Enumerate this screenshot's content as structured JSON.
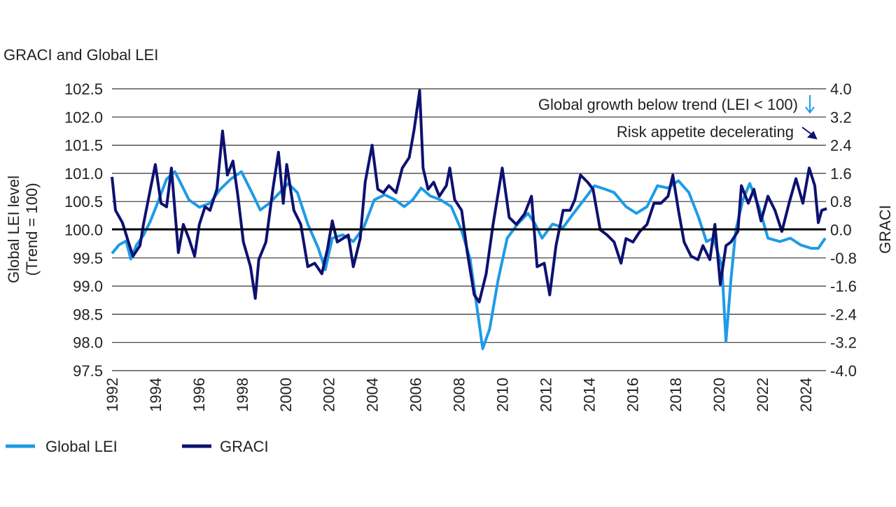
{
  "chart_data": {
    "type": "line",
    "title": "GRACI and Global LEI",
    "x_range": [
      1992,
      2025
    ],
    "x_ticks": [
      "1992",
      "1994",
      "1996",
      "1998",
      "2000",
      "2002",
      "2004",
      "2006",
      "2008",
      "2010",
      "2012",
      "2014",
      "2016",
      "2018",
      "2020",
      "2022",
      "2024"
    ],
    "left_axis": {
      "label_line1": "Global LEI level",
      "label_line2": "(Trend = 100)",
      "range": [
        97.5,
        102.5
      ],
      "ticks": [
        "102.5",
        "102.0",
        "101.5",
        "101.0",
        "100.5",
        "100.0",
        "99.5",
        "99.0",
        "98.5",
        "98.0",
        "97.5"
      ]
    },
    "right_axis": {
      "label": "GRACI",
      "range": [
        -4.0,
        4.0
      ],
      "ticks": [
        "4.0",
        "3.2",
        "2.4",
        "1.6",
        "0.8",
        "0.0",
        "-0.8",
        "-1.6",
        "-2.4",
        "-3.2",
        "-4.0"
      ]
    },
    "reference_line": {
      "left_value": 100.0
    },
    "grid": true,
    "annotations": [
      "Global growth below trend (LEI < 100)",
      "Risk appetite decelerating"
    ],
    "legend_position": "bottom-left",
    "series": [
      {
        "name": "Global LEI",
        "axis": "left",
        "color": "#1e9be6",
        "points": [
          [
            1992.0,
            99.58
          ],
          [
            1992.32,
            99.73
          ],
          [
            1992.65,
            99.8
          ],
          [
            1992.87,
            99.48
          ],
          [
            1993.13,
            99.73
          ],
          [
            1993.45,
            99.9
          ],
          [
            1993.77,
            100.15
          ],
          [
            1994.1,
            100.47
          ],
          [
            1994.52,
            100.9
          ],
          [
            1994.9,
            101.03
          ],
          [
            1995.23,
            100.78
          ],
          [
            1995.55,
            100.53
          ],
          [
            1996.03,
            100.4
          ],
          [
            1996.52,
            100.47
          ],
          [
            1997.0,
            100.72
          ],
          [
            1997.48,
            100.9
          ],
          [
            1997.97,
            101.03
          ],
          [
            1998.45,
            100.66
          ],
          [
            1998.84,
            100.35
          ],
          [
            1999.26,
            100.47
          ],
          [
            1999.74,
            100.66
          ],
          [
            2000.13,
            100.82
          ],
          [
            2000.55,
            100.66
          ],
          [
            2001.03,
            100.1
          ],
          [
            2001.52,
            99.67
          ],
          [
            2001.84,
            99.29
          ],
          [
            2002.16,
            99.85
          ],
          [
            2002.65,
            99.91
          ],
          [
            2003.13,
            99.79
          ],
          [
            2003.61,
            100.04
          ],
          [
            2004.1,
            100.53
          ],
          [
            2004.58,
            100.62
          ],
          [
            2005.06,
            100.53
          ],
          [
            2005.48,
            100.41
          ],
          [
            2005.87,
            100.53
          ],
          [
            2006.26,
            100.74
          ],
          [
            2006.68,
            100.6
          ],
          [
            2007.16,
            100.53
          ],
          [
            2007.65,
            100.41
          ],
          [
            2008.13,
            99.98
          ],
          [
            2008.52,
            99.48
          ],
          [
            2008.84,
            98.61
          ],
          [
            2009.1,
            97.89
          ],
          [
            2009.42,
            98.24
          ],
          [
            2009.81,
            99.11
          ],
          [
            2010.23,
            99.85
          ],
          [
            2010.71,
            100.1
          ],
          [
            2011.19,
            100.29
          ],
          [
            2011.52,
            100.1
          ],
          [
            2011.84,
            99.85
          ],
          [
            2012.32,
            100.1
          ],
          [
            2012.81,
            100.04
          ],
          [
            2013.29,
            100.29
          ],
          [
            2013.77,
            100.53
          ],
          [
            2014.26,
            100.78
          ],
          [
            2014.74,
            100.72
          ],
          [
            2015.16,
            100.66
          ],
          [
            2015.71,
            100.41
          ],
          [
            2016.19,
            100.29
          ],
          [
            2016.68,
            100.41
          ],
          [
            2017.16,
            100.78
          ],
          [
            2017.65,
            100.74
          ],
          [
            2018.13,
            100.87
          ],
          [
            2018.61,
            100.66
          ],
          [
            2019.06,
            100.22
          ],
          [
            2019.42,
            99.79
          ],
          [
            2019.74,
            99.85
          ],
          [
            2020.13,
            99.36
          ],
          [
            2020.32,
            98.02
          ],
          [
            2020.55,
            99.11
          ],
          [
            2020.77,
            99.98
          ],
          [
            2021.1,
            100.53
          ],
          [
            2021.42,
            100.82
          ],
          [
            2021.84,
            100.41
          ],
          [
            2022.26,
            99.85
          ],
          [
            2022.81,
            99.79
          ],
          [
            2023.29,
            99.85
          ],
          [
            2023.77,
            99.73
          ],
          [
            2024.26,
            99.67
          ],
          [
            2024.58,
            99.67
          ],
          [
            2024.9,
            99.85
          ]
        ]
      },
      {
        "name": "GRACI",
        "axis": "right",
        "color": "#0d1170",
        "points": [
          [
            1992.0,
            1.5
          ],
          [
            1992.16,
            0.55
          ],
          [
            1992.48,
            0.2
          ],
          [
            1992.81,
            -0.45
          ],
          [
            1992.97,
            -0.75
          ],
          [
            1993.29,
            -0.45
          ],
          [
            1993.45,
            0.15
          ],
          [
            1993.77,
            1.15
          ],
          [
            1994.0,
            1.85
          ],
          [
            1994.26,
            0.75
          ],
          [
            1994.52,
            0.65
          ],
          [
            1994.74,
            1.75
          ],
          [
            1995.06,
            -0.65
          ],
          [
            1995.29,
            0.15
          ],
          [
            1995.55,
            -0.25
          ],
          [
            1995.81,
            -0.75
          ],
          [
            1996.03,
            0.15
          ],
          [
            1996.29,
            0.65
          ],
          [
            1996.52,
            0.55
          ],
          [
            1996.84,
            1.15
          ],
          [
            1997.1,
            2.8
          ],
          [
            1997.32,
            1.55
          ],
          [
            1997.58,
            1.95
          ],
          [
            1997.81,
            0.95
          ],
          [
            1998.06,
            -0.35
          ],
          [
            1998.39,
            -1.05
          ],
          [
            1998.61,
            -1.95
          ],
          [
            1998.77,
            -0.85
          ],
          [
            1999.1,
            -0.35
          ],
          [
            1999.42,
            1.15
          ],
          [
            1999.68,
            2.2
          ],
          [
            1999.9,
            0.75
          ],
          [
            2000.06,
            1.85
          ],
          [
            2000.39,
            0.55
          ],
          [
            2000.71,
            0.15
          ],
          [
            2001.03,
            -1.05
          ],
          [
            2001.35,
            -0.95
          ],
          [
            2001.68,
            -1.25
          ],
          [
            2001.94,
            -0.55
          ],
          [
            2002.16,
            0.25
          ],
          [
            2002.39,
            -0.35
          ],
          [
            2002.65,
            -0.25
          ],
          [
            2002.9,
            -0.15
          ],
          [
            2003.13,
            -1.05
          ],
          [
            2003.45,
            -0.25
          ],
          [
            2003.68,
            1.35
          ],
          [
            2004.0,
            2.4
          ],
          [
            2004.26,
            1.15
          ],
          [
            2004.52,
            1.05
          ],
          [
            2004.77,
            1.25
          ],
          [
            2005.1,
            1.05
          ],
          [
            2005.39,
            1.75
          ],
          [
            2005.71,
            2.05
          ],
          [
            2005.94,
            2.85
          ],
          [
            2006.19,
            3.95
          ],
          [
            2006.35,
            1.75
          ],
          [
            2006.58,
            1.15
          ],
          [
            2006.84,
            1.35
          ],
          [
            2007.1,
            0.95
          ],
          [
            2007.42,
            1.25
          ],
          [
            2007.58,
            1.75
          ],
          [
            2007.81,
            0.85
          ],
          [
            2008.13,
            0.55
          ],
          [
            2008.39,
            -0.65
          ],
          [
            2008.71,
            -1.85
          ],
          [
            2008.94,
            -2.05
          ],
          [
            2009.26,
            -1.25
          ],
          [
            2009.58,
            0.15
          ],
          [
            2010.0,
            1.75
          ],
          [
            2010.32,
            0.35
          ],
          [
            2010.65,
            0.15
          ],
          [
            2011.03,
            0.45
          ],
          [
            2011.35,
            0.95
          ],
          [
            2011.61,
            -1.05
          ],
          [
            2011.94,
            -0.95
          ],
          [
            2012.19,
            -1.85
          ],
          [
            2012.48,
            -0.45
          ],
          [
            2012.81,
            0.55
          ],
          [
            2013.13,
            0.55
          ],
          [
            2013.35,
            0.85
          ],
          [
            2013.61,
            1.55
          ],
          [
            2013.94,
            1.35
          ],
          [
            2014.19,
            1.15
          ],
          [
            2014.52,
            0.0
          ],
          [
            2014.84,
            -0.15
          ],
          [
            2015.16,
            -0.35
          ],
          [
            2015.48,
            -0.95
          ],
          [
            2015.71,
            -0.25
          ],
          [
            2016.03,
            -0.35
          ],
          [
            2016.35,
            -0.05
          ],
          [
            2016.68,
            0.15
          ],
          [
            2017.0,
            0.75
          ],
          [
            2017.32,
            0.75
          ],
          [
            2017.65,
            0.95
          ],
          [
            2017.87,
            1.55
          ],
          [
            2018.13,
            0.55
          ],
          [
            2018.39,
            -0.35
          ],
          [
            2018.71,
            -0.75
          ],
          [
            2019.03,
            -0.85
          ],
          [
            2019.26,
            -0.45
          ],
          [
            2019.58,
            -0.85
          ],
          [
            2019.81,
            0.15
          ],
          [
            2020.06,
            -1.55
          ],
          [
            2020.32,
            -0.45
          ],
          [
            2020.55,
            -0.35
          ],
          [
            2020.87,
            -0.05
          ],
          [
            2021.03,
            1.25
          ],
          [
            2021.35,
            0.75
          ],
          [
            2021.61,
            1.15
          ],
          [
            2021.94,
            0.25
          ],
          [
            2022.26,
            0.95
          ],
          [
            2022.58,
            0.55
          ],
          [
            2022.9,
            -0.05
          ],
          [
            2023.23,
            0.75
          ],
          [
            2023.55,
            1.45
          ],
          [
            2023.87,
            0.75
          ],
          [
            2024.16,
            1.75
          ],
          [
            2024.42,
            1.25
          ],
          [
            2024.58,
            0.2
          ],
          [
            2024.74,
            0.55
          ],
          [
            2024.97,
            0.6
          ]
        ]
      }
    ]
  }
}
